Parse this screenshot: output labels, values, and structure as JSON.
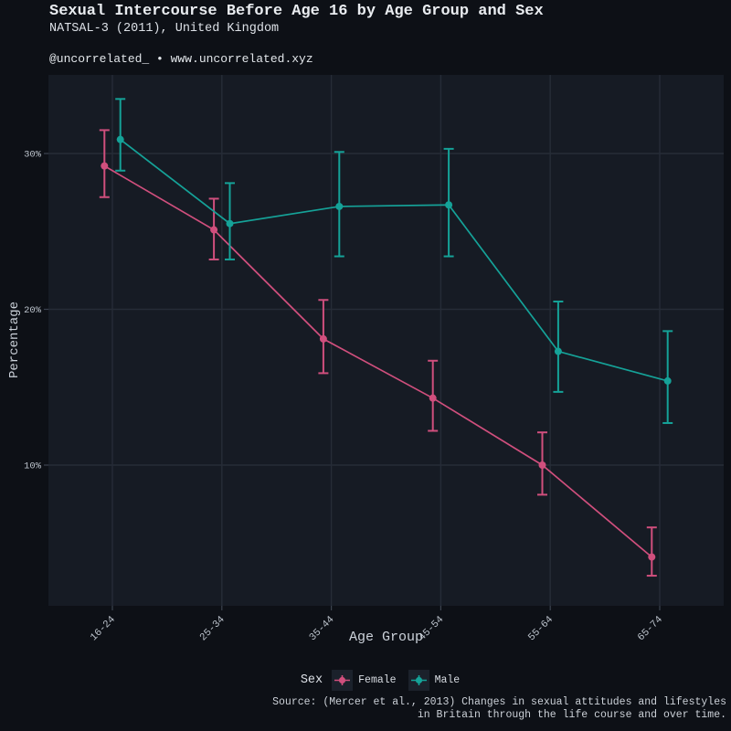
{
  "header": {
    "title": "Sexual Intercourse Before Age 16 by Age Group and Sex",
    "subtitle": "NATSAL-3 (2011), United Kingdom",
    "handle": "@uncorrelated_ • www.uncorrelated.xyz"
  },
  "chart_data": {
    "type": "line",
    "title": "Sexual Intercourse Before Age 16 by Age Group and Sex",
    "subtitle": "NATSAL-3 (2011), United Kingdom",
    "categories": [
      "16-24",
      "25-34",
      "35-44",
      "45-54",
      "55-64",
      "65-74"
    ],
    "xlabel": "Age Group",
    "ylabel": "Percentage",
    "yticks": [
      {
        "value": 30,
        "label": "30%"
      },
      {
        "value": 20,
        "label": "20%"
      },
      {
        "value": 10,
        "label": "10%"
      }
    ],
    "ylim": [
      1,
      35
    ],
    "grid": true,
    "legend_title": "Sex",
    "legend_position": "bottom",
    "error_bars": "95% confidence intervals",
    "series": [
      {
        "name": "Female",
        "color": "#d04f7d",
        "values": [
          29.2,
          25.1,
          18.1,
          14.3,
          10.0,
          4.1
        ],
        "ci_low": [
          27.2,
          23.2,
          15.9,
          12.2,
          8.1,
          2.9
        ],
        "ci_high": [
          31.5,
          27.1,
          20.6,
          16.7,
          12.1,
          6.0
        ]
      },
      {
        "name": "Male",
        "color": "#15a298",
        "values": [
          30.9,
          25.5,
          26.6,
          26.7,
          17.3,
          15.4
        ],
        "ci_low": [
          28.9,
          23.2,
          23.4,
          23.4,
          14.7,
          12.7
        ],
        "ci_high": [
          33.5,
          28.1,
          30.1,
          30.3,
          20.5,
          18.6
        ]
      }
    ]
  },
  "footer": {
    "source_line1": "Source: (Mercer et al., 2013) Changes in sexual attitudes and lifestyles",
    "source_line2": "in Britain through the life course and over time."
  },
  "colors": {
    "background": "#0d1016",
    "panel": "#161b24",
    "gridline": "#262c37",
    "tick_mark": "#3c434f",
    "tick_text": "#bcc3cc",
    "female": "#d04f7d",
    "male": "#15a298"
  }
}
